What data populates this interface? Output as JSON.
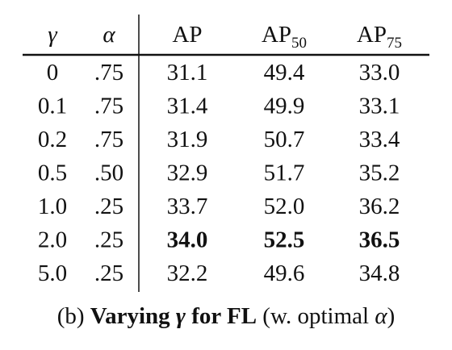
{
  "table": {
    "header": [
      {
        "text": "γ",
        "italic": true
      },
      {
        "text": "α",
        "italic": true
      },
      {
        "text": "AP"
      },
      {
        "text": "AP",
        "sub": "50"
      },
      {
        "text": "AP",
        "sub": "75"
      }
    ],
    "rows": [
      [
        "0",
        ".75",
        "31.1",
        "49.4",
        "33.0"
      ],
      [
        "0.1",
        ".75",
        "31.4",
        "49.9",
        "33.1"
      ],
      [
        "0.2",
        ".75",
        "31.9",
        "50.7",
        "33.4"
      ],
      [
        "0.5",
        ".50",
        "32.9",
        "51.7",
        "35.2"
      ],
      [
        "1.0",
        ".25",
        "33.7",
        "52.0",
        "36.2"
      ],
      [
        "2.0",
        ".25",
        "34.0",
        "52.5",
        "36.5"
      ],
      [
        "5.0",
        ".25",
        "32.2",
        "49.6",
        "34.8"
      ]
    ],
    "bold_row": 5
  },
  "caption": [
    {
      "text": "(b) "
    },
    {
      "text": "Varying ",
      "bold": true
    },
    {
      "text": "γ",
      "bold": true,
      "italic": true
    },
    {
      "text": " for FL",
      "bold": true
    },
    {
      "text": " (w. optimal "
    },
    {
      "text": "α",
      "italic": true
    },
    {
      "text": ")"
    }
  ]
}
